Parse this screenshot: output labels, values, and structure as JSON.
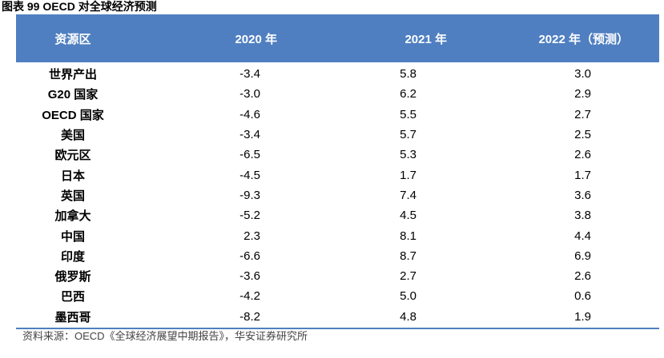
{
  "title": "图表 99 OECD 对全球经济预测",
  "table": {
    "headers": [
      "资源区",
      "2020 年",
      "2021 年",
      "2022 年（预测）"
    ],
    "rows": [
      [
        "世界产出",
        "-3.4",
        "5.8",
        "3.0"
      ],
      [
        "G20 国家",
        "-3.0",
        "6.2",
        "2.9"
      ],
      [
        "OECD 国家",
        "-4.6",
        "5.5",
        "2.7"
      ],
      [
        "美国",
        "-3.4",
        "5.7",
        "2.5"
      ],
      [
        "欧元区",
        "-6.5",
        "5.3",
        "2.6"
      ],
      [
        "日本",
        "-4.5",
        "1.7",
        "1.7"
      ],
      [
        "英国",
        "-9.3",
        "7.4",
        "3.6"
      ],
      [
        "加拿大",
        "-5.2",
        "4.5",
        "3.8"
      ],
      [
        "中国",
        "2.3",
        "8.1",
        "4.4"
      ],
      [
        "印度",
        "-6.6",
        "8.7",
        "6.9"
      ],
      [
        "俄罗斯",
        "-3.6",
        "2.7",
        "2.6"
      ],
      [
        "巴西",
        "-4.2",
        "5.0",
        "0.6"
      ],
      [
        "墨西哥",
        "-8.2",
        "4.8",
        "1.9"
      ]
    ]
  },
  "source": "资料来源：OECD《全球经济展望中期报告》，华安证券研究所",
  "colors": {
    "header_bg": "#4f7fc1",
    "header_text": "#ffffff"
  }
}
